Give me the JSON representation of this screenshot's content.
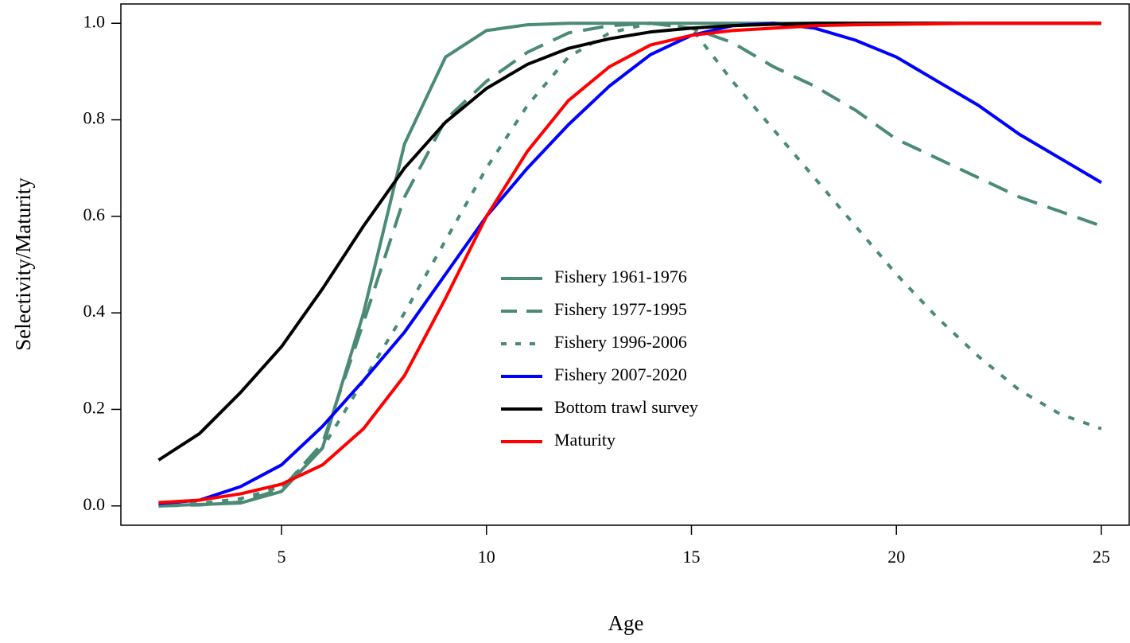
{
  "chart_data": {
    "type": "line",
    "x_label": "Age",
    "y_label": "Selectivity/Maturity",
    "x": [
      2,
      3,
      4,
      5,
      6,
      7,
      8,
      9,
      10,
      11,
      12,
      13,
      14,
      15,
      16,
      17,
      18,
      19,
      20,
      21,
      22,
      23,
      24,
      25
    ],
    "series": [
      {
        "name": "Fishery 1961-1976",
        "color": "#4a8a76",
        "dash": "solid",
        "values": [
          0,
          0.003,
          0.006,
          0.03,
          0.12,
          0.4,
          0.75,
          0.93,
          0.985,
          0.997,
          1,
          1,
          1,
          1,
          1,
          1,
          1,
          1,
          1,
          1,
          1,
          1,
          1,
          1
        ]
      },
      {
        "name": "Fishery 1977-1995",
        "color": "#4a8a76",
        "dash": "dashed",
        "values": [
          0,
          0.002,
          0.008,
          0.035,
          0.13,
          0.38,
          0.64,
          0.8,
          0.88,
          0.94,
          0.98,
          0.995,
          1,
          0.99,
          0.96,
          0.91,
          0.87,
          0.82,
          0.76,
          0.72,
          0.68,
          0.64,
          0.61,
          0.58
        ]
      },
      {
        "name": "Fishery 1996-2006",
        "color": "#4a8a76",
        "dash": "dotted",
        "values": [
          0,
          0.005,
          0.015,
          0.04,
          0.12,
          0.26,
          0.4,
          0.55,
          0.7,
          0.83,
          0.93,
          0.98,
          1,
          0.99,
          0.88,
          0.78,
          0.68,
          0.58,
          0.48,
          0.39,
          0.31,
          0.24,
          0.19,
          0.16
        ]
      },
      {
        "name": "Fishery 2007-2020",
        "color": "#0000ff",
        "dash": "solid",
        "values": [
          0.005,
          0.012,
          0.04,
          0.085,
          0.165,
          0.26,
          0.36,
          0.48,
          0.6,
          0.7,
          0.79,
          0.87,
          0.935,
          0.975,
          0.995,
          1,
          0.99,
          0.965,
          0.93,
          0.88,
          0.83,
          0.77,
          0.72,
          0.67
        ]
      },
      {
        "name": "Bottom trawl survey",
        "color": "#000000",
        "dash": "solid",
        "values": [
          0.095,
          0.15,
          0.235,
          0.33,
          0.45,
          0.58,
          0.7,
          0.795,
          0.865,
          0.915,
          0.948,
          0.968,
          0.982,
          0.99,
          0.995,
          0.998,
          1,
          1,
          1,
          1,
          1,
          1,
          1,
          1
        ]
      },
      {
        "name": "Maturity",
        "color": "#ff0000",
        "dash": "solid",
        "values": [
          0.007,
          0.012,
          0.025,
          0.045,
          0.085,
          0.16,
          0.27,
          0.43,
          0.6,
          0.735,
          0.84,
          0.91,
          0.955,
          0.975,
          0.985,
          0.99,
          0.995,
          0.997,
          0.998,
          0.999,
          1,
          1,
          1,
          1
        ]
      }
    ],
    "xlim": [
      1.08,
      25.68
    ],
    "ylim": [
      -0.04,
      1.04
    ],
    "xticks": [
      5,
      10,
      15,
      20,
      25
    ],
    "yticks": [
      {
        "value": 0,
        "label": "0.0"
      },
      0.2,
      0.4,
      0.6,
      0.8,
      {
        "value": 1,
        "label": "1.0"
      }
    ],
    "legend": "center"
  }
}
